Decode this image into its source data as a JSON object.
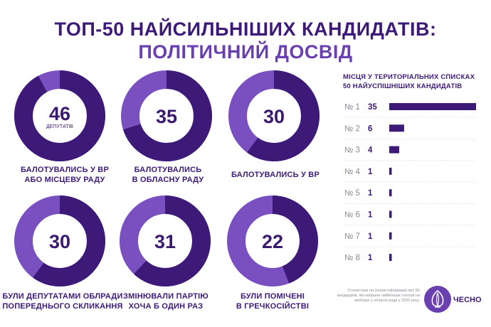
{
  "title": {
    "line1": "ТОП-50 НАЙСИЛЬНІШИХ КАНДИДАТІВ:",
    "line2": "ПОЛІТИЧНИЙ ДОСВІД"
  },
  "chart_data": [
    {
      "type": "pie",
      "total": 50,
      "items": [
        {
          "value": 46,
          "sublabel": "ДЕПУТАТІВ",
          "caption": [
            "БАЛОТУВАЛИСЬ У ВР",
            "АБО МІСЦЕВУ РАДУ"
          ]
        },
        {
          "value": 35,
          "caption": [
            "БАЛОТУВАЛИСЬ",
            "В ОБЛАСНУ РАДУ"
          ]
        },
        {
          "value": 30,
          "caption": [
            "БАЛОТУВАЛИСЬ У ВР"
          ]
        },
        {
          "value": 30,
          "caption": [
            "БУЛИ ДЕПУТАТАМИ ОБЛРАДИ",
            "ПОПЕРЕДНЬОГО СКЛИКАННЯ"
          ]
        },
        {
          "value": 31,
          "caption": [
            "ЗМІНЮВАЛИ ПАРТІЮ",
            "ХОЧА Б ОДИН РАЗ"
          ]
        },
        {
          "value": 22,
          "caption": [
            "БУЛИ ПОМІЧЕНІ",
            "В ГРЕЧКОСІЙСТВІ"
          ]
        }
      ]
    },
    {
      "type": "bar",
      "title": [
        "МІСЦЯ У ТЕРИТОРІАЛЬНИХ СПИСКАХ",
        "50 НАЙУСПІШНІШИХ КАНДИДАТІВ"
      ],
      "categories": [
        "№ 1",
        "№ 2",
        "№ 3",
        "№ 4",
        "№ 5",
        "№ 6",
        "№ 7",
        "№ 8"
      ],
      "values": [
        35,
        6,
        4,
        1,
        1,
        1,
        1,
        1
      ]
    }
  ],
  "colors": {
    "dark_purple": "#3d1a78",
    "light_purple": "#7a4fbf",
    "text": "#3a1a6e",
    "muted": "#8a8a95"
  },
  "footnote": "Статистика на основі інформації про 50 кандидатів, які набрали найбільше голосів на виборах у обласні ради у 2020 році.",
  "logo": {
    "text": "ЧЕСНО",
    "icon": "garlic-icon"
  }
}
